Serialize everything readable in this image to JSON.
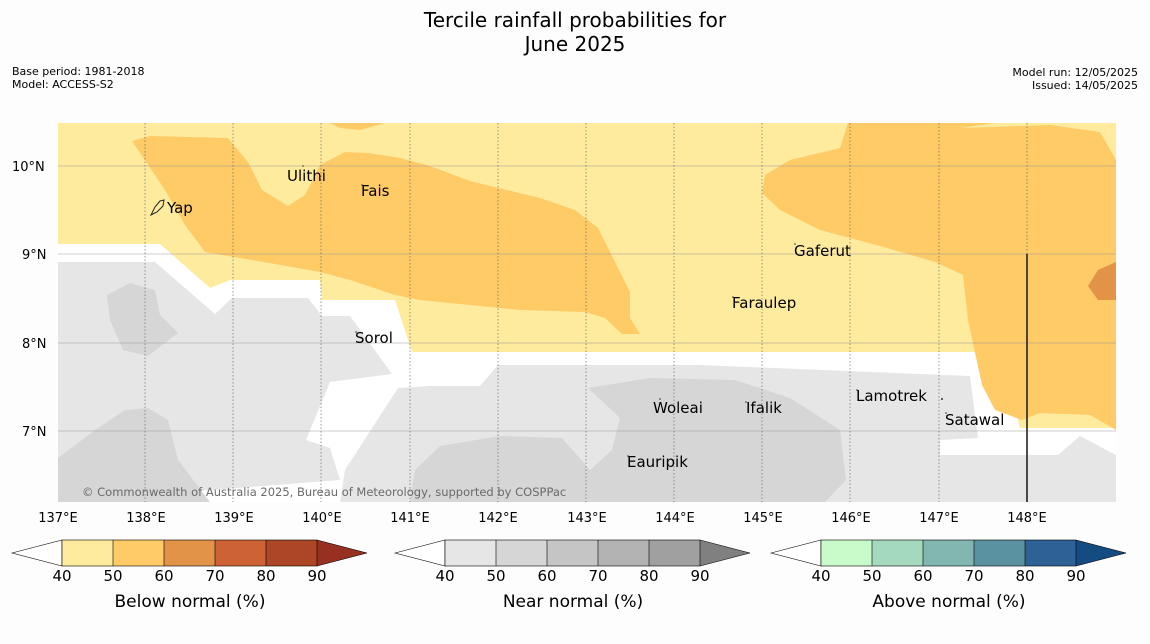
{
  "title_line1": "Tercile rainfall probabilities for",
  "title_line2": "June 2025",
  "meta_left": {
    "base_period": "Base period: 1981-2018",
    "model": "Model: ACCESS-S2"
  },
  "meta_right": {
    "model_run": "Model run: 12/05/2025",
    "issued": "Issued: 14/05/2025"
  },
  "map": {
    "lat_labels": [
      "10°N",
      "9°N",
      "8°N",
      "7°N"
    ],
    "lon_labels": [
      "137°E",
      "138°E",
      "139°E",
      "140°E",
      "141°E",
      "142°E",
      "143°E",
      "144°E",
      "145°E",
      "146°E",
      "147°E",
      "148°E"
    ],
    "places": [
      "Yap",
      "Ulithi",
      "Fais",
      "Gaferut",
      "Faraulep",
      "Sorol",
      "Lamotrek",
      "Satawal",
      "Woleai",
      "Ifalik",
      "Eauripik"
    ],
    "copyright": "© Commonwealth of Australia 2025, Bureau of Meteorology, supported by COSPPac",
    "colors": {
      "below_40": "#ffeb9e",
      "below_50": "#fecb67",
      "below_60": "#e29347",
      "near_40": "#e6e6e6",
      "near_50": "#d6d6d6",
      "white": "#ffffff"
    }
  },
  "legends": [
    {
      "title": "Below normal (%)",
      "ticks": [
        "40",
        "50",
        "60",
        "70",
        "80",
        "90"
      ],
      "colors": [
        "#ffeb9e",
        "#fecb67",
        "#e29347",
        "#cd6234",
        "#ad4626",
        "#973020"
      ]
    },
    {
      "title": "Near normal (%)",
      "ticks": [
        "40",
        "50",
        "60",
        "70",
        "80",
        "90"
      ],
      "colors": [
        "#e6e6e6",
        "#d6d6d6",
        "#c5c5c5",
        "#b3b3b3",
        "#a0a0a0",
        "#808080"
      ]
    },
    {
      "title": "Above normal (%)",
      "ticks": [
        "40",
        "50",
        "60",
        "70",
        "80",
        "90"
      ],
      "colors": [
        "#c8fbc9",
        "#a4d9bd",
        "#81b7b0",
        "#5b92a1",
        "#2e6296",
        "#144b80"
      ]
    }
  ]
}
